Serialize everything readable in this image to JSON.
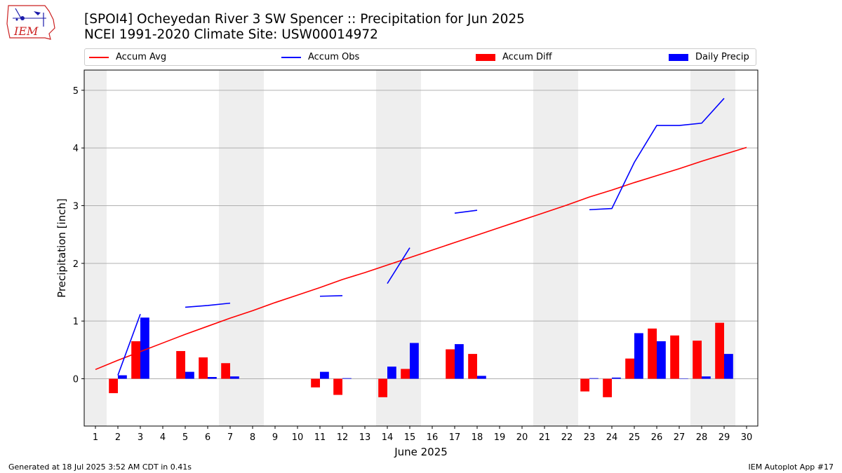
{
  "header": {
    "logo_text": "IEM",
    "title_line1": "[SPOI4] Ocheyedan River 3 SW Spencer :: Precipitation for Jun 2025",
    "title_line2": "NCEI 1991-2020 Climate Site: USW00014972"
  },
  "legend": {
    "position": "top",
    "items": [
      {
        "label": "Accum Avg",
        "kind": "line",
        "color": "#ff0000"
      },
      {
        "label": "Accum Obs",
        "kind": "line",
        "color": "#0000ff"
      },
      {
        "label": "Accum Diff",
        "kind": "bar",
        "color": "#ff0000"
      },
      {
        "label": "Daily Precip",
        "kind": "bar",
        "color": "#0000ff"
      }
    ]
  },
  "chart_data": {
    "type": "bar",
    "xlabel": "June 2025",
    "ylabel": "Precipitation [inch]",
    "xlim": [
      0.5,
      30.5
    ],
    "ylim": [
      -0.82,
      5.35
    ],
    "x_ticks": [
      1,
      2,
      3,
      4,
      5,
      6,
      7,
      8,
      9,
      10,
      11,
      12,
      13,
      14,
      15,
      16,
      17,
      18,
      19,
      20,
      21,
      22,
      23,
      24,
      25,
      26,
      27,
      28,
      29,
      30
    ],
    "y_ticks": [
      0,
      1,
      2,
      3,
      4,
      5
    ],
    "grid": "horizontal",
    "weekend_shading": [
      [
        0.5,
        1.5
      ],
      [
        6.5,
        8.5
      ],
      [
        13.5,
        15.5
      ],
      [
        20.5,
        22.5
      ],
      [
        27.5,
        29.5
      ]
    ],
    "colors": {
      "avg": "#ff0000",
      "obs": "#0000ff",
      "diff": "#ff0000",
      "daily": "#0000ff",
      "shade": "#eeeeee",
      "grid": "#b0b0b0"
    },
    "accum_avg": {
      "x": [
        1,
        2,
        3,
        4,
        5,
        6,
        7,
        8,
        9,
        10,
        11,
        12,
        13,
        14,
        15,
        16,
        17,
        18,
        19,
        20,
        21,
        22,
        23,
        24,
        25,
        26,
        27,
        28,
        29,
        30
      ],
      "y": [
        0.16,
        0.32,
        0.47,
        0.62,
        0.77,
        0.91,
        1.05,
        1.18,
        1.32,
        1.45,
        1.58,
        1.72,
        1.84,
        1.97,
        2.1,
        2.23,
        2.36,
        2.49,
        2.62,
        2.75,
        2.88,
        3.01,
        3.15,
        3.27,
        3.4,
        3.52,
        3.64,
        3.77,
        3.89,
        4.01
      ]
    },
    "accum_obs_segments": [
      {
        "x": [
          2,
          3
        ],
        "y": [
          0.06,
          1.12
        ]
      },
      {
        "x": [
          5,
          6,
          7
        ],
        "y": [
          1.24,
          1.27,
          1.31
        ]
      },
      {
        "x": [
          11,
          12
        ],
        "y": [
          1.43,
          1.44
        ]
      },
      {
        "x": [
          14,
          15
        ],
        "y": [
          1.65,
          2.27
        ]
      },
      {
        "x": [
          17,
          18
        ],
        "y": [
          2.87,
          2.92
        ]
      },
      {
        "x": [
          23,
          24,
          25,
          26,
          27,
          28,
          29
        ],
        "y": [
          2.93,
          2.95,
          3.75,
          4.39,
          4.39,
          4.43,
          4.86
        ]
      }
    ],
    "series": [
      {
        "name": "Accum Diff",
        "x": [
          2,
          3,
          5,
          6,
          7,
          11,
          12,
          14,
          15,
          17,
          18,
          23,
          24,
          25,
          26,
          27,
          28,
          29
        ],
        "values": [
          -0.25,
          0.65,
          0.48,
          0.37,
          0.27,
          -0.15,
          -0.28,
          -0.32,
          0.17,
          0.51,
          0.43,
          -0.22,
          -0.32,
          0.35,
          0.87,
          0.75,
          0.66,
          0.97
        ]
      },
      {
        "name": "Daily Precip",
        "x": [
          2,
          3,
          5,
          6,
          7,
          11,
          12,
          14,
          15,
          17,
          18,
          23,
          24,
          25,
          26,
          27,
          28,
          29
        ],
        "values": [
          0.06,
          1.06,
          0.12,
          0.03,
          0.04,
          0.12,
          0.01,
          0.21,
          0.62,
          0.6,
          0.05,
          0.01,
          0.02,
          0.79,
          0.65,
          0.0,
          0.04,
          0.43
        ]
      }
    ]
  },
  "footer": {
    "generated": "Generated at 18 Jul 2025 3:52 AM CDT in 0.41s",
    "app": "IEM Autoplot App #17"
  }
}
